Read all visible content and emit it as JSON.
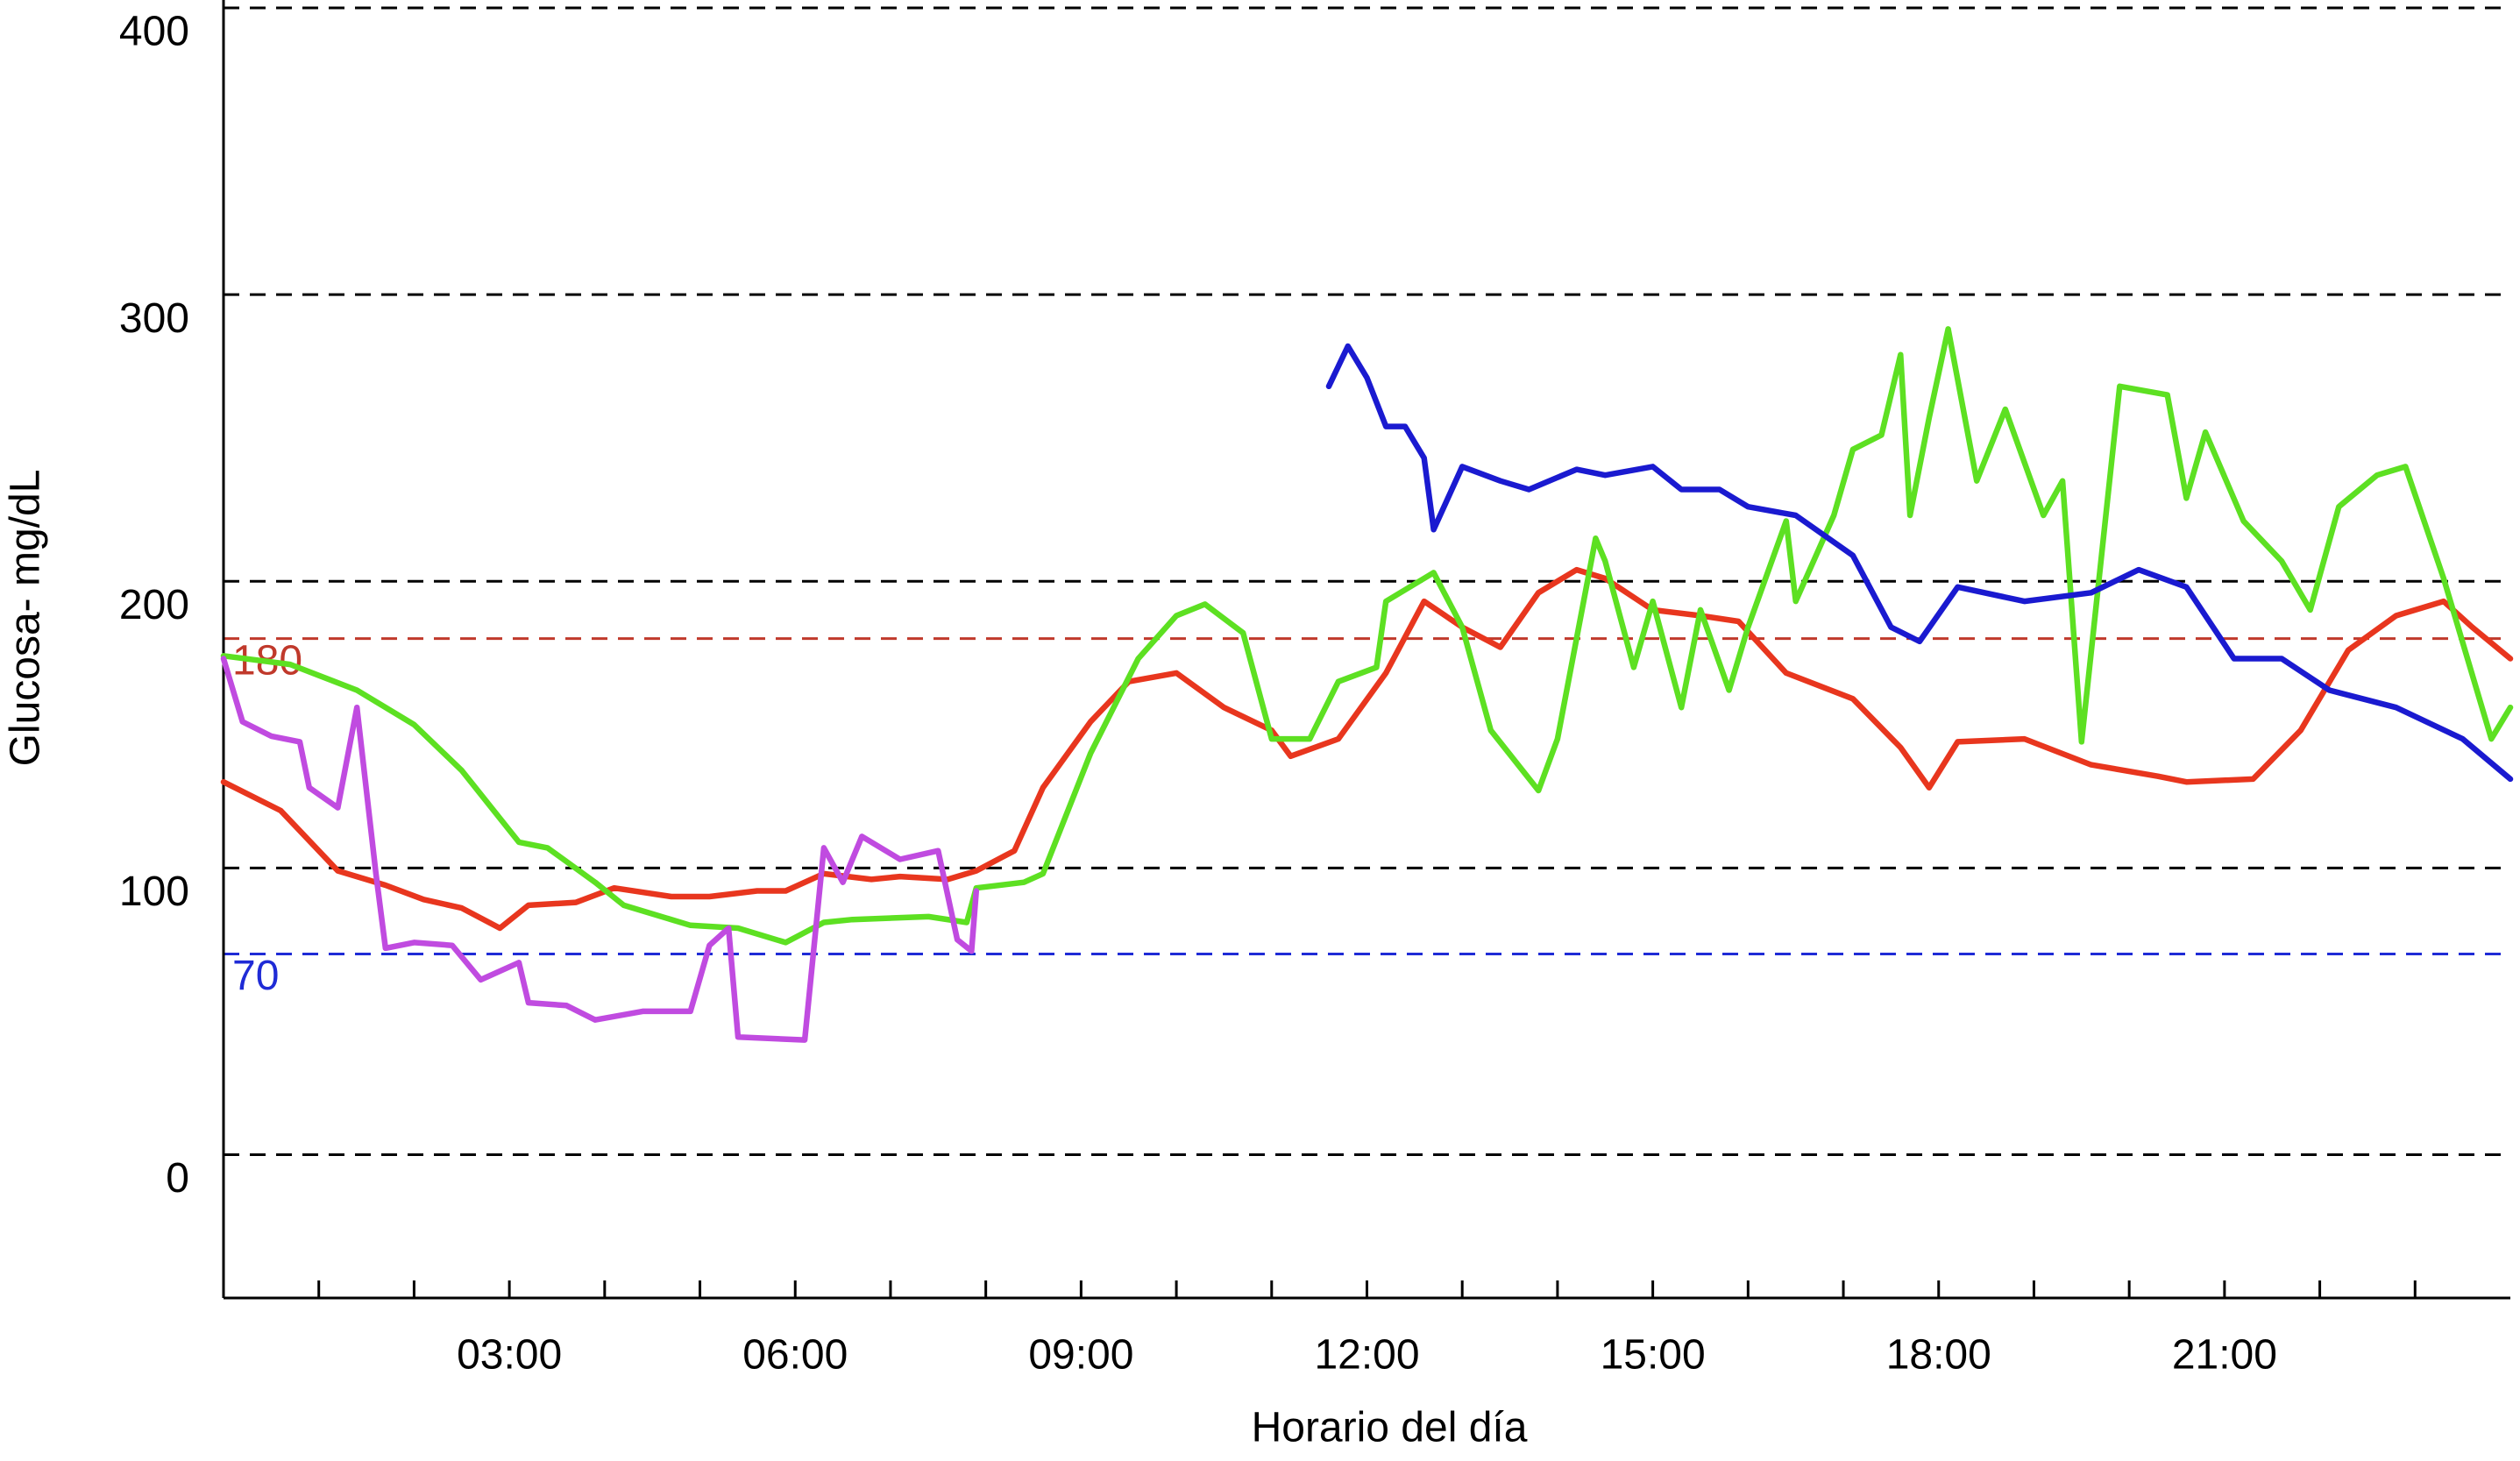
{
  "chart_data": {
    "type": "line",
    "x_label": "Horario del día",
    "y_label": "Glucosa- mg/dL",
    "xlim": [
      0,
      24
    ],
    "ylim": [
      -50,
      400
    ],
    "xticks": [
      {
        "value": 3,
        "label": "03:00"
      },
      {
        "value": 6,
        "label": "06:00"
      },
      {
        "value": 9,
        "label": "09:00"
      },
      {
        "value": 12,
        "label": "12:00"
      },
      {
        "value": 15,
        "label": "15:00"
      },
      {
        "value": 18,
        "label": "18:00"
      },
      {
        "value": 21,
        "label": "21:00"
      }
    ],
    "xminorticks": [
      1,
      2,
      4,
      5,
      7,
      8,
      10,
      11,
      13,
      14,
      16,
      17,
      19,
      20,
      22,
      23
    ],
    "yticks": [
      0,
      100,
      200,
      300,
      400
    ],
    "grid": true,
    "grid_color": "#000000",
    "reference_lines": [
      {
        "value": 180,
        "color": "#c0392b"
      },
      {
        "value": 70,
        "color": "#1f2bd6"
      }
    ],
    "series": [
      {
        "color": "#e8361e",
        "x": [
          0,
          0.6,
          1.2,
          1.7,
          2.1,
          2.5,
          2.9,
          3.2,
          3.7,
          4.1,
          4.7,
          5.1,
          5.6,
          5.9,
          6.3,
          6.8,
          7.1,
          7.6,
          7.9,
          8.3,
          8.6,
          9.1,
          9.5,
          10.0,
          10.5,
          11.0,
          11.2,
          11.7,
          12.2,
          12.6,
          13.0,
          13.4,
          13.8,
          14.2,
          14.5,
          15.0,
          15.5,
          15.9,
          16.4,
          17.1,
          17.6,
          17.9,
          18.2,
          18.9,
          19.6,
          20.3,
          20.6,
          21.3,
          21.8,
          22.3,
          22.8,
          23.3,
          23.6,
          24.0
        ],
        "values": [
          130,
          120,
          99,
          94,
          89,
          86,
          79,
          87,
          88,
          93,
          90,
          90,
          92,
          92,
          98,
          96,
          97,
          96,
          99,
          106,
          128,
          151,
          165,
          168,
          156,
          148,
          139,
          145,
          168,
          193,
          184,
          177,
          196,
          204,
          201,
          190,
          188,
          186,
          168,
          159,
          142,
          128,
          144,
          145,
          136,
          132,
          130,
          131,
          148,
          176,
          188,
          193,
          184,
          173
        ]
      },
      {
        "color": "#5de022",
        "x": [
          0,
          0.7,
          1.4,
          2.0,
          2.5,
          3.1,
          3.4,
          3.9,
          4.2,
          4.9,
          5.4,
          5.9,
          6.3,
          6.6,
          7.4,
          7.8,
          7.9,
          8.4,
          8.6,
          9.1,
          9.6,
          10.0,
          10.3,
          10.7,
          11.0,
          11.4,
          11.7,
          12.1,
          12.2,
          12.7,
          13.0,
          13.3,
          13.8,
          14.0,
          14.4,
          14.5,
          14.8,
          15.0,
          15.3,
          15.5,
          15.8,
          16.0,
          16.4,
          16.5,
          16.9,
          17.1,
          17.4,
          17.6,
          17.7,
          17.9,
          18.1,
          18.4,
          18.7,
          19.1,
          19.3,
          19.5,
          19.9,
          20.4,
          20.6,
          20.8,
          21.2,
          21.6,
          21.9,
          22.2,
          22.6,
          22.9,
          23.3,
          23.8,
          24.0
        ],
        "values": [
          174,
          171,
          162,
          150,
          134,
          109,
          107,
          95,
          87,
          80,
          79,
          74,
          81,
          82,
          83,
          81,
          93,
          95,
          98,
          140,
          173,
          188,
          192,
          182,
          145,
          145,
          165,
          170,
          193,
          203,
          184,
          148,
          127,
          145,
          215,
          207,
          170,
          193,
          156,
          190,
          162,
          184,
          221,
          193,
          223,
          246,
          251,
          279,
          223,
          257,
          288,
          235,
          260,
          223,
          235,
          144,
          268,
          265,
          229,
          252,
          221,
          207,
          190,
          226,
          237,
          240,
          201,
          145,
          156
        ]
      },
      {
        "color": "#c04be0",
        "x": [
          0,
          0.2,
          0.5,
          0.8,
          0.9,
          1.2,
          1.4,
          1.6,
          1.7,
          2.0,
          2.4,
          2.7,
          3.1,
          3.2,
          3.6,
          3.9,
          4.4,
          4.9,
          5.1,
          5.3,
          5.4,
          6.1,
          6.3,
          6.5,
          6.7,
          7.1,
          7.5,
          7.7,
          7.85,
          7.9
        ],
        "values": [
          173,
          151,
          146,
          144,
          128,
          121,
          156,
          98,
          72,
          74,
          73,
          61,
          67,
          53,
          52,
          47,
          50,
          50,
          73,
          79,
          41,
          40,
          107,
          95,
          111,
          103,
          106,
          75,
          71,
          92
        ]
      },
      {
        "color": "#1a1ad0",
        "x": [
          11.6,
          11.8,
          12.0,
          12.2,
          12.4,
          12.6,
          12.7,
          13.0,
          13.4,
          13.7,
          14.2,
          14.5,
          15.0,
          15.3,
          15.7,
          16.0,
          16.5,
          17.1,
          17.5,
          17.8,
          18.2,
          18.9,
          19.6,
          20.1,
          20.6,
          21.1,
          21.6,
          22.1,
          22.8,
          23.5,
          24.0
        ],
        "values": [
          268,
          282,
          271,
          254,
          254,
          243,
          218,
          240,
          235,
          232,
          239,
          237,
          240,
          232,
          232,
          226,
          223,
          209,
          184,
          179,
          198,
          193,
          196,
          204,
          198,
          173,
          173,
          162,
          156,
          145,
          131
        ]
      }
    ]
  }
}
